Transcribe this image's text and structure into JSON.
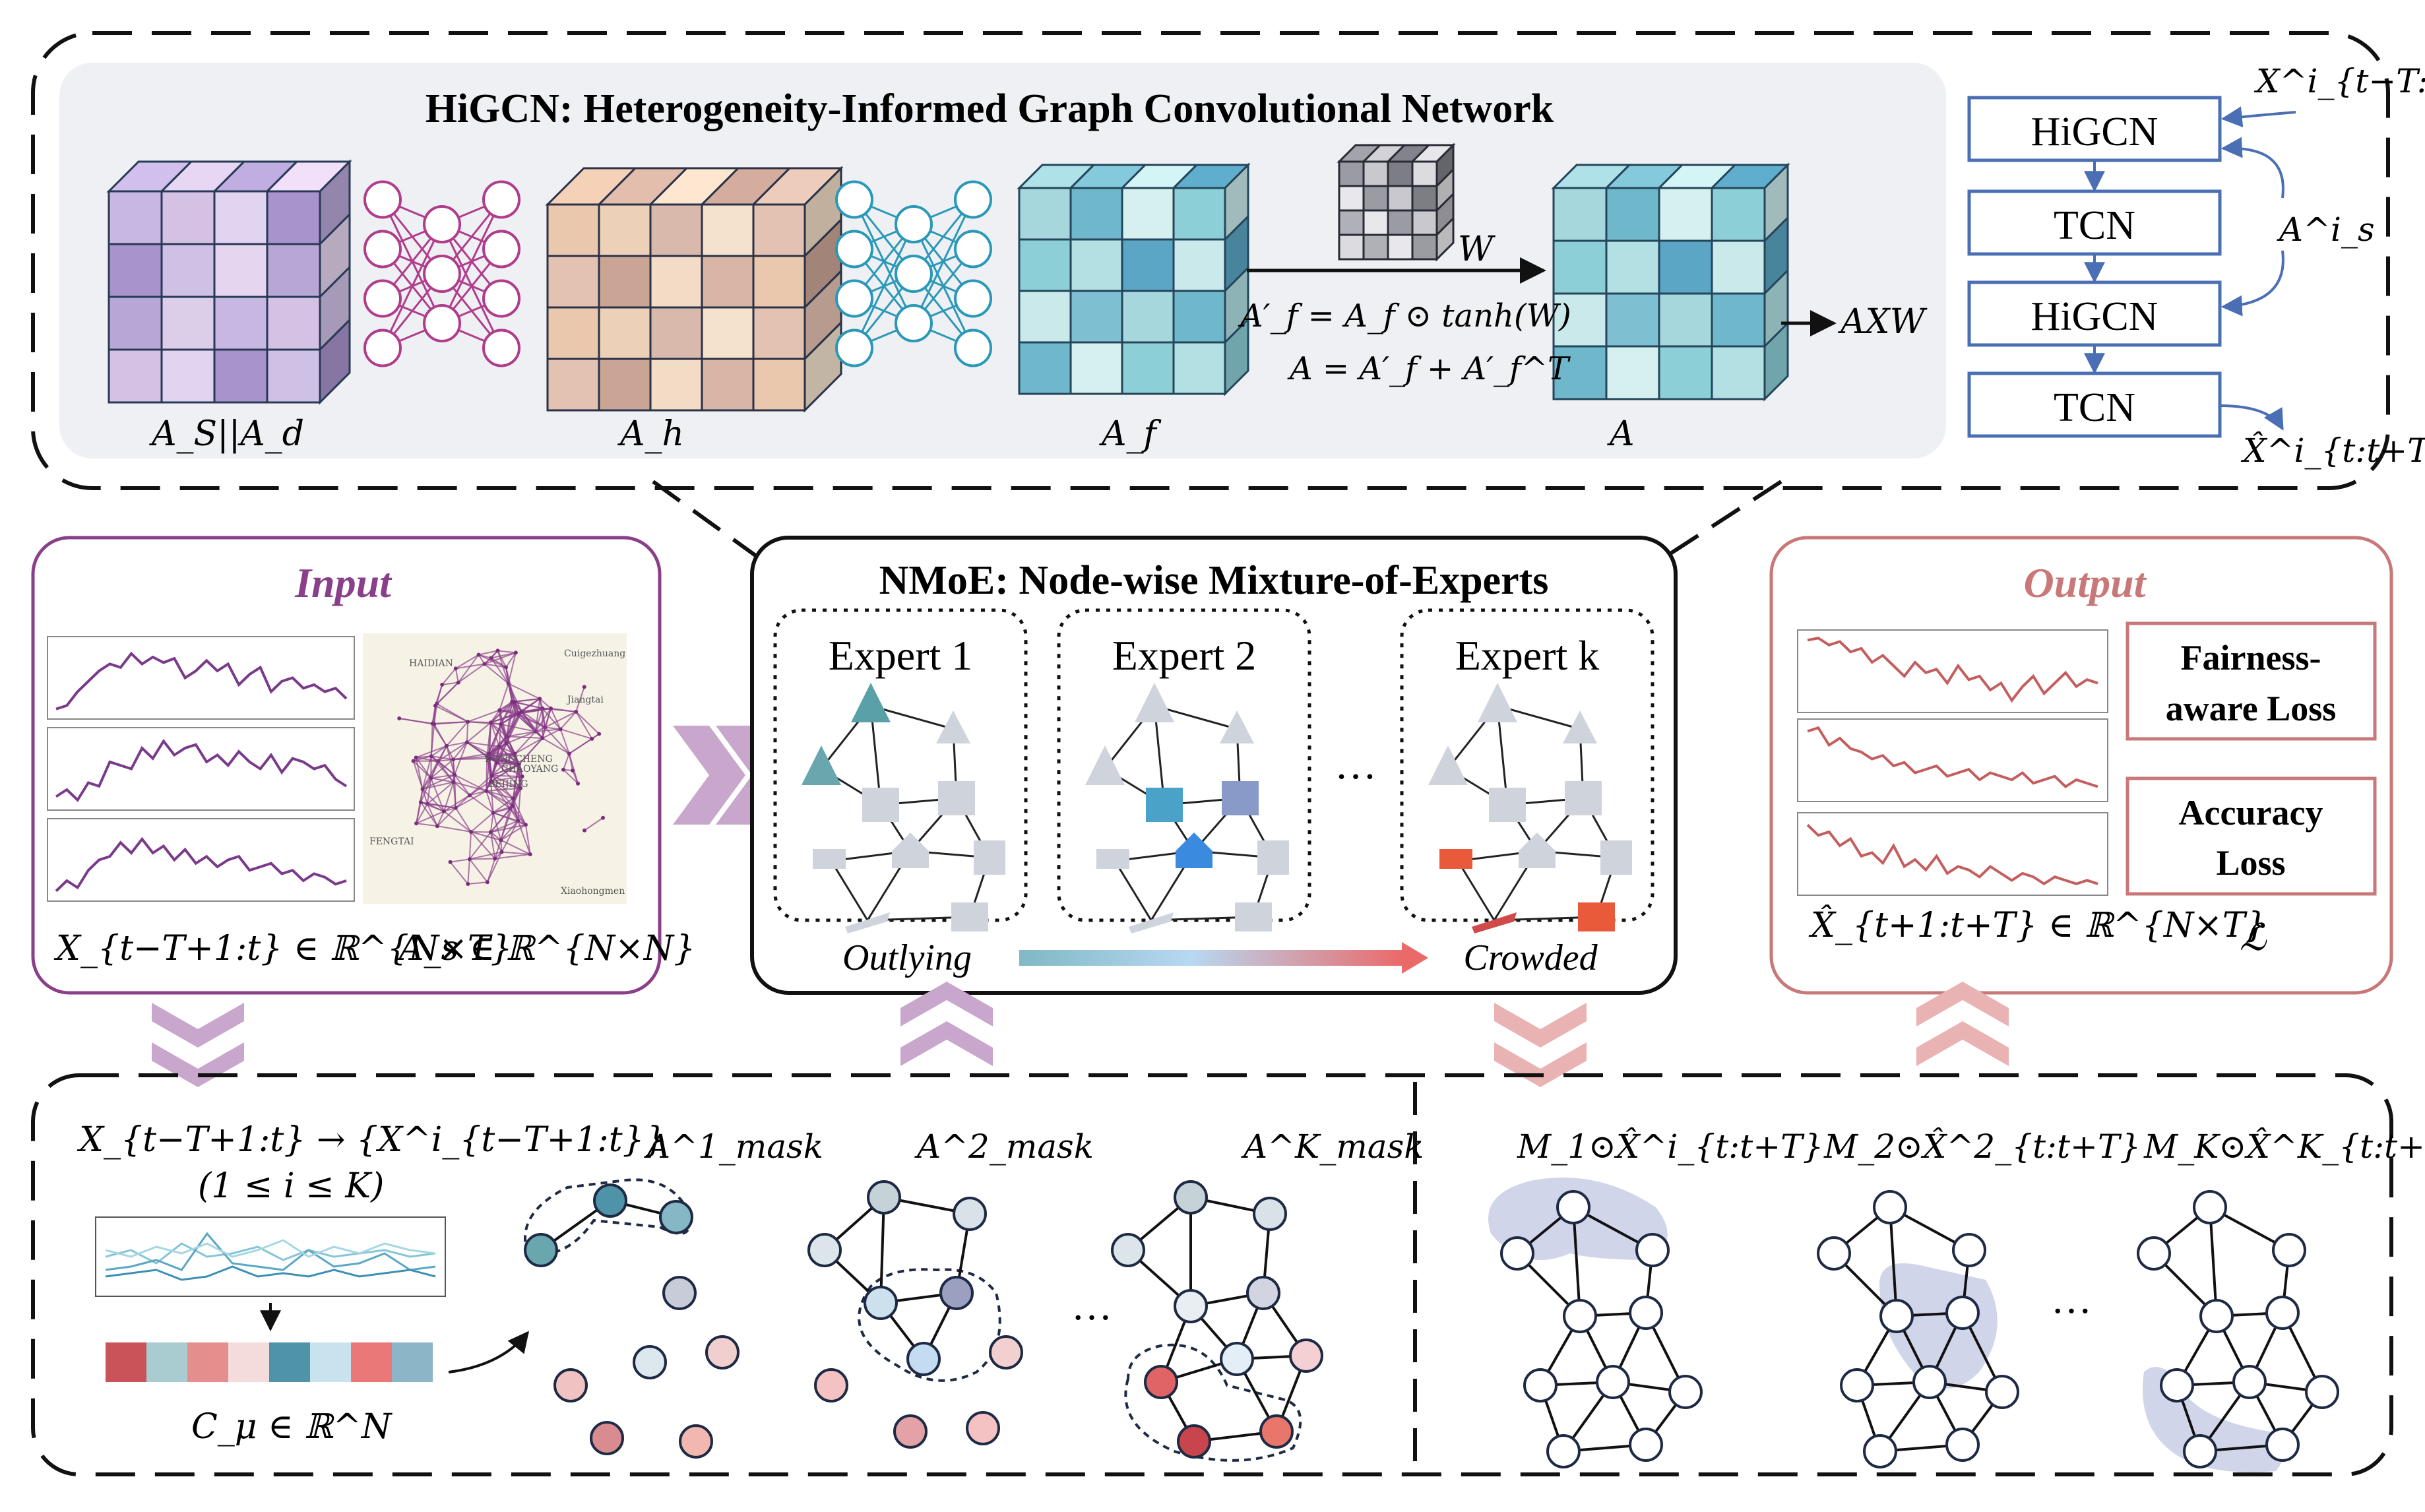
{
  "higcn_panel": {
    "title": "HiGCN: Heterogeneity-Informed Graph Convolutional Network",
    "labels": {
      "as_ad": "A_S||A_d",
      "ah": "A_h",
      "af": "A_f",
      "a": "A",
      "w": "W",
      "formula1": "A′_f = A_f ⊙ tanh(W)",
      "formula2": "A = A′_f + A′_f^T",
      "axw": "AXW"
    }
  },
  "stack": {
    "blocks": [
      "HiGCN",
      "TCN",
      "HiGCN",
      "TCN"
    ],
    "input_label": "X^i_{t−T:t}",
    "side_label": "A^i_s",
    "output_label": "X̂^i_{t:t+T}"
  },
  "input_panel": {
    "title": "Input",
    "x_label": "X_{t−T+1:t} ∈ ℝ^{N×T}",
    "as_label": "A_s ∈ ℝ^{N×N}",
    "map_labels": [
      "HAIDIAN",
      "DONGCHENG",
      "CHAOYANG",
      "BEIJING",
      "FENGTAI",
      "Cuigezhuang",
      "Jiangtai",
      "Xiaohongmen"
    ]
  },
  "nmoe_panel": {
    "title": "NMoE: Node-wise Mixture-of-Experts",
    "experts": [
      "Expert 1",
      "Expert 2",
      "Expert k"
    ],
    "ellipsis": "…",
    "left_label": "Outlying",
    "right_label": "Crowded"
  },
  "output_panel": {
    "title": "Output",
    "loss_boxes": [
      {
        "line1": "Fairness-",
        "line2": "aware Loss"
      },
      {
        "line1": "Accuracy",
        "line2": "Loss"
      }
    ],
    "xhat_label": "X̂_{t+1:t+T} ∈ ℝ^{N×T}",
    "loss_symbol": "ℒ"
  },
  "bottom_left": {
    "split_label": "X_{t−T+1:t} → {X^i_{t−T+1:t}}",
    "range_label": "(1 ≤ i ≤ K)",
    "c_label": "C_μ ∈ ℝ^N",
    "masks": [
      "A^1_mask",
      "A^2_mask",
      "A^K_mask"
    ],
    "ellipsis": "…"
  },
  "bottom_right": {
    "masks": [
      "M_1⊙X̂^i_{t:t+T}",
      "M_2⊙X̂^2_{t:t+T}",
      "M_K⊙X̂^K_{t:t+T}"
    ],
    "ellipsis": "…"
  },
  "colors": {
    "input_accent": "#8a3f8a",
    "output_accent": "#c87878",
    "stack_blue": "#4a6fb5",
    "teal_cube": "#5aa6c4",
    "purple_cube": "#b5a4d4",
    "peach_cube": "#e8c8b0"
  }
}
